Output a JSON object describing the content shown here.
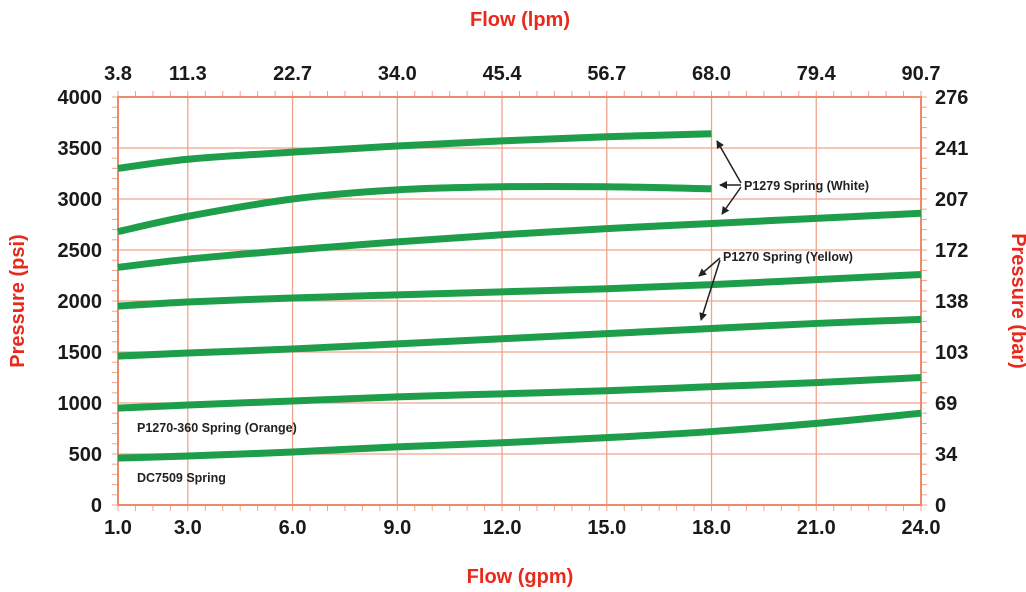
{
  "colors": {
    "background": "#ffffff",
    "grid": "#f1a38a",
    "frame": "#ee8a6c",
    "axis_title": "#e8291c",
    "curve": "#1e9e4a",
    "text": "#1a1a1a"
  },
  "chart_data": {
    "type": "line",
    "title": "",
    "xlabel": "Flow (gpm)",
    "x2label": "Flow (lpm)",
    "ylabel": "Pressure (psi)",
    "y2label": "Pressure (bar)",
    "xlim": [
      1.0,
      24.0
    ],
    "ylim": [
      0,
      4000
    ],
    "grid": true,
    "x_ticks": [
      "1.0",
      "3.0",
      "6.0",
      "9.0",
      "12.0",
      "15.0",
      "18.0",
      "21.0",
      "24.0"
    ],
    "x2_ticks": [
      "3.8",
      "11.3",
      "22.7",
      "34.0",
      "45.4",
      "56.7",
      "68.0",
      "79.4",
      "90.7"
    ],
    "y_ticks": [
      "0",
      "500",
      "1000",
      "1500",
      "2000",
      "2500",
      "3000",
      "3500",
      "4000"
    ],
    "y2_ticks": [
      "0",
      "34",
      "69",
      "103",
      "138",
      "172",
      "207",
      "241",
      "276"
    ],
    "series": [
      {
        "x": [
          1.0,
          3,
          6,
          9,
          12,
          15,
          18
        ],
        "y": [
          3300,
          3390,
          3460,
          3520,
          3570,
          3610,
          3640
        ]
      },
      {
        "x": [
          1.0,
          3,
          6,
          9,
          12,
          15,
          18
        ],
        "y": [
          2680,
          2830,
          3000,
          3090,
          3120,
          3120,
          3100
        ]
      },
      {
        "x": [
          1.0,
          3,
          6,
          9,
          12,
          15,
          18,
          21,
          24
        ],
        "y": [
          2330,
          2410,
          2500,
          2580,
          2650,
          2710,
          2760,
          2810,
          2860
        ]
      },
      {
        "x": [
          1.0,
          3,
          6,
          9,
          12,
          15,
          18,
          21,
          24
        ],
        "y": [
          1950,
          1990,
          2030,
          2060,
          2090,
          2120,
          2160,
          2210,
          2260
        ]
      },
      {
        "x": [
          1.0,
          3,
          6,
          9,
          12,
          15,
          18,
          21,
          24
        ],
        "y": [
          1460,
          1490,
          1530,
          1580,
          1630,
          1680,
          1730,
          1780,
          1820
        ]
      },
      {
        "x": [
          1.0,
          3,
          6,
          9,
          12,
          15,
          18,
          21,
          24
        ],
        "y": [
          950,
          980,
          1020,
          1060,
          1090,
          1120,
          1160,
          1200,
          1250
        ]
      },
      {
        "x": [
          1.0,
          3,
          6,
          9,
          12,
          15,
          18,
          21,
          24
        ],
        "y": [
          460,
          480,
          520,
          570,
          610,
          660,
          720,
          800,
          900
        ]
      }
    ],
    "annotations": [
      "P1279 Spring (White)",
      "P1270 Spring (Yellow)",
      "P1270-360 Spring (Orange)",
      "DC7509 Spring"
    ]
  }
}
